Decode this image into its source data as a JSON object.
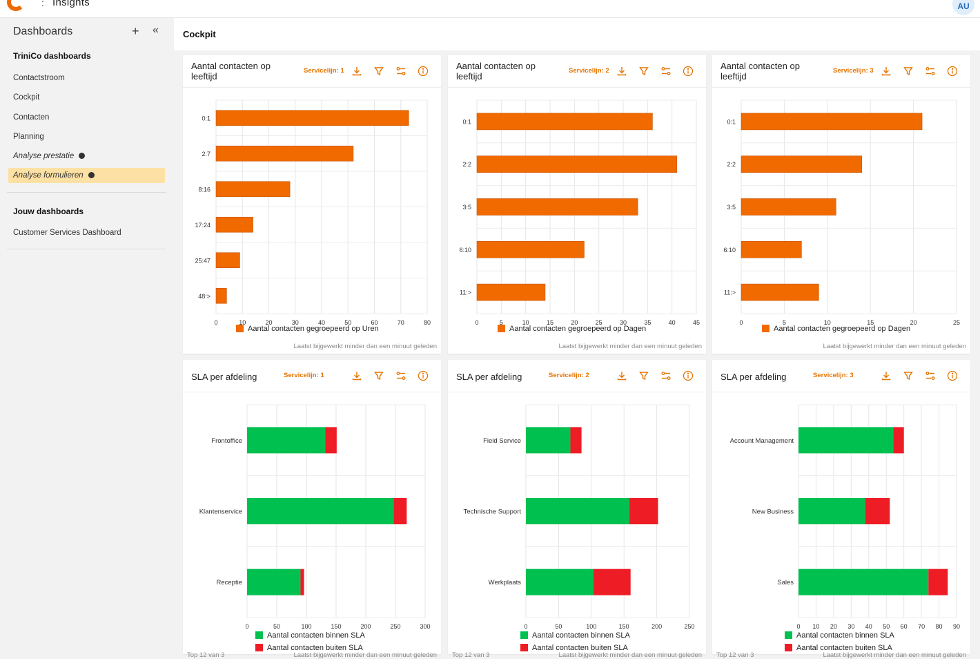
{
  "topbar": {
    "separator": ":",
    "app_title": "Insights",
    "avatar_initials": "AU"
  },
  "sidebar": {
    "header": "Dashboards",
    "add_icon": "plus-icon",
    "collapse_icon": "double-chevron-left-icon",
    "section1": "TriniCo dashboards",
    "items": [
      {
        "label": "Contactstroom",
        "italic": false,
        "dot": false,
        "active": false
      },
      {
        "label": "Cockpit",
        "italic": false,
        "dot": false,
        "active": false
      },
      {
        "label": "Contacten",
        "italic": false,
        "dot": false,
        "active": false
      },
      {
        "label": "Planning",
        "italic": false,
        "dot": false,
        "active": false
      },
      {
        "label": "Analyse prestatie",
        "italic": true,
        "dot": true,
        "active": false
      },
      {
        "label": "Analyse formulieren",
        "italic": true,
        "dot": true,
        "active": true
      }
    ],
    "section2": "Jouw dashboards",
    "items2": [
      {
        "label": "Customer Services Dashboard"
      }
    ]
  },
  "main": {
    "title": "Cockpit"
  },
  "colors": {
    "accent": "#e57300",
    "bar_orange": "#f06a00",
    "green": "#00c050",
    "red": "#ee1c25"
  },
  "cards": [
    {
      "title": "Aantal contacten op leeftijd",
      "filter": "Servicelijn: 1",
      "footer": "Laatst bijgewerkt minder dan een minuut geleden",
      "footer_left": ""
    },
    {
      "title": "Aantal contacten op leeftijd",
      "filter": "Servicelijn: 2",
      "footer": "Laatst bijgewerkt minder dan een minuut geleden",
      "footer_left": ""
    },
    {
      "title": "Aantal contacten op leeftijd",
      "filter": "Servicelijn: 3",
      "footer": "Laatst bijgewerkt minder dan een minuut geleden",
      "footer_left": ""
    },
    {
      "title": "SLA per afdeling",
      "filter": "Servicelijn: 1",
      "footer": "Laatst bijgewerkt minder dan een minuut geleden",
      "footer_left": "Top 12 van 3"
    },
    {
      "title": "SLA per afdeling",
      "filter": "Servicelijn: 2",
      "footer": "Laatst bijgewerkt minder dan een minuut geleden",
      "footer_left": "Top 12 van 3"
    },
    {
      "title": "SLA per afdeling",
      "filter": "Servicelijn: 3",
      "footer": "Laatst bijgewerkt minder dan een minuut geleden",
      "footer_left": "Top 12 van 3"
    }
  ],
  "toolbar_icons": [
    "download-icon",
    "filter-icon",
    "settings-sliders-icon",
    "info-icon"
  ],
  "chart_data": [
    {
      "type": "bar",
      "orientation": "horizontal",
      "categories": [
        "0:1",
        "2:7",
        "8:16",
        "17:24",
        "25:47",
        "48:>"
      ],
      "series": [
        {
          "name": "Aantal contacten gegroepeerd op Uren",
          "values": [
            73,
            52,
            28,
            14,
            9,
            4
          ]
        }
      ],
      "xlim": [
        0,
        80
      ],
      "xticks": [
        0,
        10,
        20,
        30,
        40,
        50,
        60,
        70,
        80
      ],
      "legend": "bottom",
      "grid": true
    },
    {
      "type": "bar",
      "orientation": "horizontal",
      "categories": [
        "0:1",
        "2:2",
        "3:5",
        "6:10",
        "11:>"
      ],
      "series": [
        {
          "name": "Aantal contacten gegroepeerd op Dagen",
          "values": [
            36,
            41,
            33,
            22,
            14
          ]
        }
      ],
      "xlim": [
        0,
        45
      ],
      "xticks": [
        0,
        5,
        10,
        15,
        20,
        25,
        30,
        35,
        40,
        45
      ],
      "legend": "bottom",
      "grid": true
    },
    {
      "type": "bar",
      "orientation": "horizontal",
      "categories": [
        "0:1",
        "2:2",
        "3:5",
        "6:10",
        "11:>"
      ],
      "series": [
        {
          "name": "Aantal contacten gegroepeerd op Dagen",
          "values": [
            21,
            14,
            11,
            7,
            9
          ]
        }
      ],
      "xlim": [
        0,
        25
      ],
      "xticks": [
        0,
        5,
        10,
        15,
        20,
        25
      ],
      "legend": "bottom",
      "grid": true
    },
    {
      "type": "bar",
      "orientation": "horizontal",
      "stacked": true,
      "categories": [
        "Frontoffice",
        "Klantenservice",
        "Receptie"
      ],
      "series": [
        {
          "name": "Aantal contacten binnen SLA",
          "values": [
            132,
            247,
            90
          ]
        },
        {
          "name": "Aantal contacten buiten SLA",
          "values": [
            19,
            22,
            6
          ]
        }
      ],
      "xlim": [
        0,
        300
      ],
      "xticks": [
        0,
        50,
        100,
        150,
        200,
        250,
        300
      ],
      "legend": "bottom",
      "grid": true
    },
    {
      "type": "bar",
      "orientation": "horizontal",
      "stacked": true,
      "categories": [
        "Field Service",
        "Technische Support",
        "Werkplaats"
      ],
      "series": [
        {
          "name": "Aantal contacten binnen SLA",
          "values": [
            68,
            158,
            103
          ]
        },
        {
          "name": "Aantal contacten buiten SLA",
          "values": [
            17,
            44,
            57
          ]
        }
      ],
      "xlim": [
        0,
        250
      ],
      "xticks": [
        0,
        50,
        100,
        150,
        200,
        250
      ],
      "legend": "bottom",
      "grid": true
    },
    {
      "type": "bar",
      "orientation": "horizontal",
      "stacked": true,
      "categories": [
        "Account Management",
        "New Business",
        "Sales"
      ],
      "series": [
        {
          "name": "Aantal contacten binnen SLA",
          "values": [
            54,
            38,
            74
          ]
        },
        {
          "name": "Aantal contacten buiten SLA",
          "values": [
            6,
            14,
            11
          ]
        }
      ],
      "xlim": [
        0,
        90
      ],
      "xticks": [
        0,
        10,
        20,
        30,
        40,
        50,
        60,
        70,
        80,
        90
      ],
      "legend": "bottom",
      "grid": true
    }
  ]
}
